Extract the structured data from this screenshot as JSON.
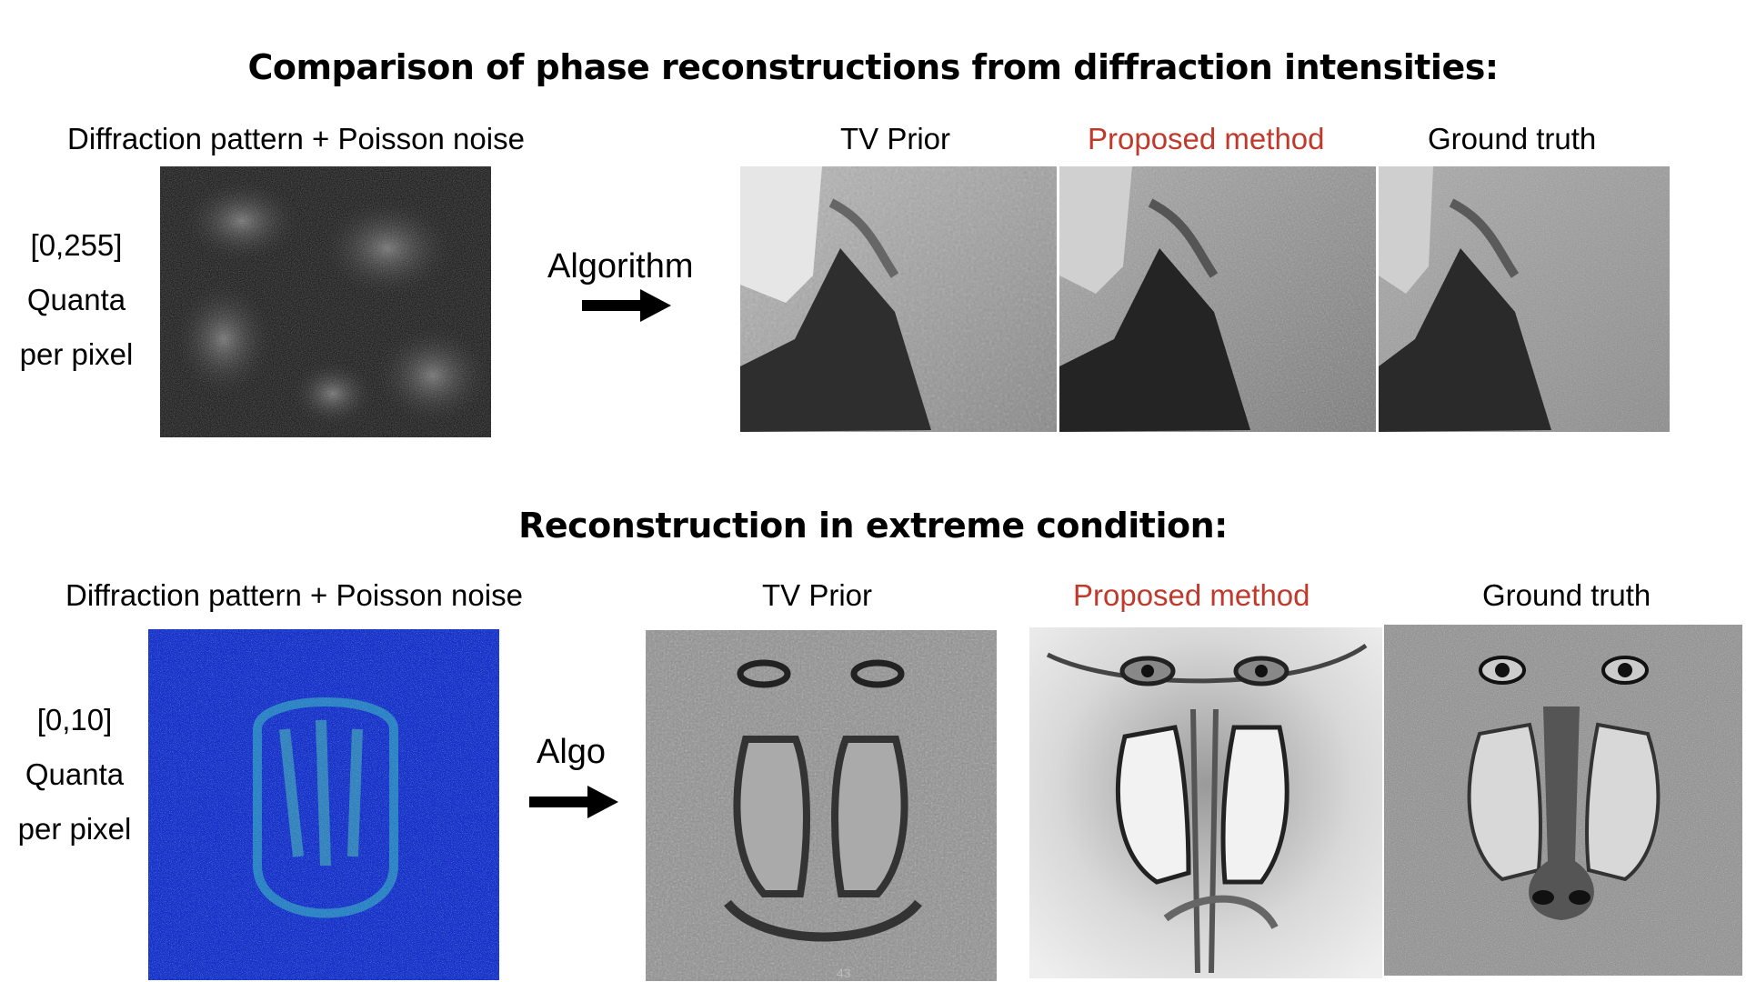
{
  "section1": {
    "title": "Comparison of phase reconstructions from diffraction intensities:",
    "input_label": "Diffraction pattern + Poisson noise",
    "side": [
      "[0,255]",
      "Quanta",
      "per pixel"
    ],
    "arrow_label": "Algorithm",
    "columns": [
      "TV Prior",
      "Proposed method",
      "Ground truth"
    ]
  },
  "section2": {
    "title": "Reconstruction in extreme condition:",
    "input_label": "Diffraction pattern + Poisson noise",
    "side": [
      "[0,10]",
      "Quanta",
      "per pixel"
    ],
    "arrow_label": "Algo",
    "columns": [
      "TV Prior",
      "Proposed method",
      "Ground truth"
    ]
  },
  "footer": {
    "page_number": "43"
  },
  "colors": {
    "highlight": "#c0392b",
    "noise_blue": "#1a2fc8"
  }
}
